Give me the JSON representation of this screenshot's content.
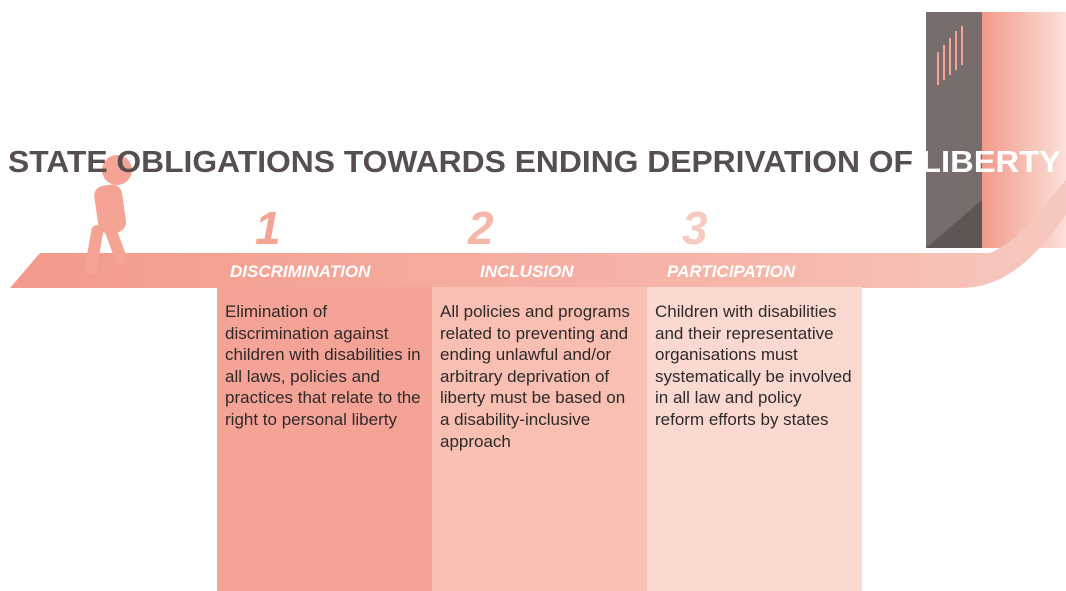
{
  "title": "STATE OBLIGATIONS TOWARDS ENDING DEPRIVATION OF",
  "title_highlight": "LIBERTY",
  "steps": [
    {
      "number": "1",
      "label": "DISCRIMINATION",
      "text": "Elimination of discrimination against children with disabilities in all laws, policies and practices that relate to the right to personal liberty"
    },
    {
      "number": "2",
      "label": "INCLUSION",
      "text": "All policies and programs related to preventing and ending unlawful and/or arbitrary deprivation of liberty must be based on a disability-inclusive approach"
    },
    {
      "number": "3",
      "label": "PARTICIPATION",
      "text": "Children with disabilities and their representative organisations must systematically be involved in all law and policy reform efforts by states"
    }
  ]
}
